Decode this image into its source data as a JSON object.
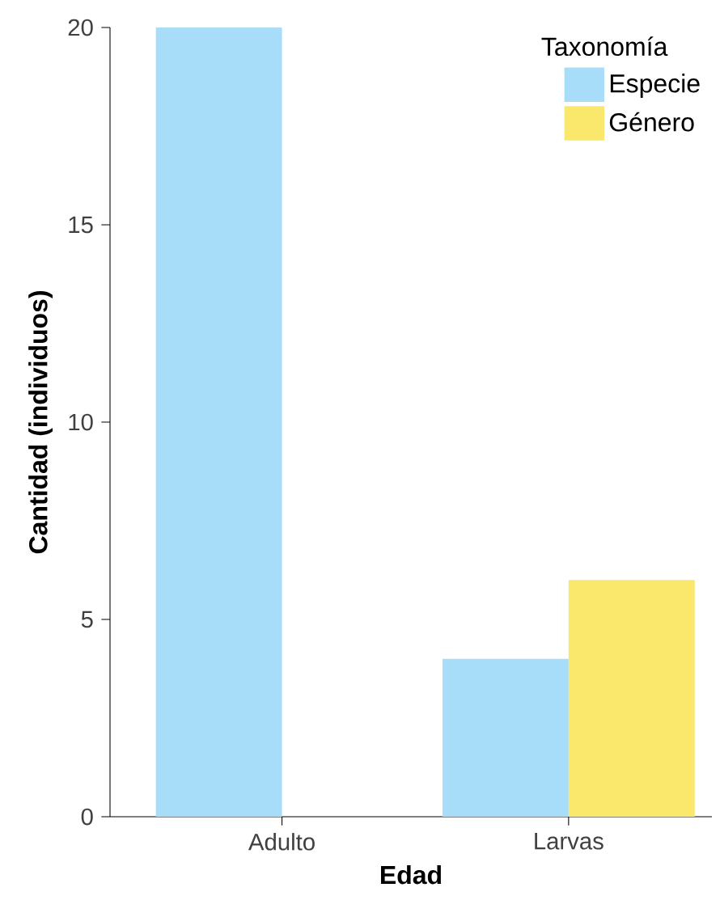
{
  "chart_data": {
    "type": "bar",
    "xlabel": "Edad",
    "ylabel": "Cantidad (individuos)",
    "legend_title": "Taxonomía",
    "categories": [
      "Adulto",
      "Larvas"
    ],
    "series": [
      {
        "name": "Especie",
        "color": "#a8ddf9",
        "values": [
          20,
          4
        ]
      },
      {
        "name": "Género",
        "color": "#f9e86c",
        "values": [
          null,
          6
        ]
      }
    ],
    "ylim": [
      0,
      20
    ],
    "yticks": [
      0,
      5,
      10,
      15,
      20
    ],
    "grid": false,
    "legend": "top right"
  }
}
